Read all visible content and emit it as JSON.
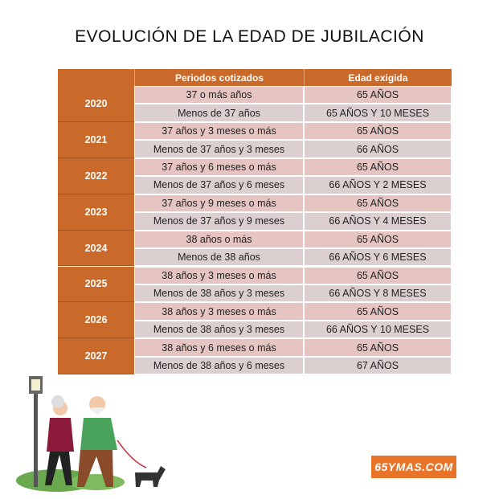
{
  "title": "EVOLUCIÓN DE LA EDAD DE JUBILACIÓN",
  "table": {
    "header": [
      "Periodos cotizados",
      "Edad exigida"
    ],
    "rows": [
      {
        "year": "2020",
        "rows": [
          [
            "37 o más años",
            "65 AÑOS"
          ],
          [
            "Menos de 37 años",
            "65 AÑOS Y 10 MESES"
          ]
        ]
      },
      {
        "year": "2021",
        "rows": [
          [
            "37 años y 3 meses o más",
            "65 AÑOS"
          ],
          [
            "Menos de 37 años y 3 meses",
            "66 AÑOS"
          ]
        ]
      },
      {
        "year": "2022",
        "rows": [
          [
            "37 años y 6 meses o más",
            "65 AÑOS"
          ],
          [
            "Menos de 37 años y 6 meses",
            "66 AÑOS Y 2 MESES"
          ]
        ]
      },
      {
        "year": "2023",
        "rows": [
          [
            "37 años y 9 meses o más",
            "65 AÑOS"
          ],
          [
            "Menos de 37 años y 9 meses",
            "66 AÑOS Y 4 MESES"
          ]
        ]
      },
      {
        "year": "2024",
        "rows": [
          [
            "38 años o más",
            "65 AÑOS"
          ],
          [
            "Menos de 38 años",
            "66 AÑOS Y 6 MESES"
          ]
        ]
      },
      {
        "year": "2025",
        "rows": [
          [
            "38 años y 3 meses o más",
            "65 AÑOS"
          ],
          [
            "Menos de 38 años y 3 meses",
            "66 AÑOS Y 8 MESES"
          ]
        ]
      },
      {
        "year": "2026",
        "rows": [
          [
            "38 años y 3 meses o más",
            "65 AÑOS"
          ],
          [
            "Menos de 38 años y 3 meses",
            "66 AÑOS Y 10 MESES"
          ]
        ]
      },
      {
        "year": "2027",
        "rows": [
          [
            "38 años y 6 meses o más",
            "65 AÑOS"
          ],
          [
            "Menos de 38 años y 6 meses",
            "67 AÑOS"
          ]
        ]
      }
    ]
  },
  "logo": "65YMAS.COM"
}
